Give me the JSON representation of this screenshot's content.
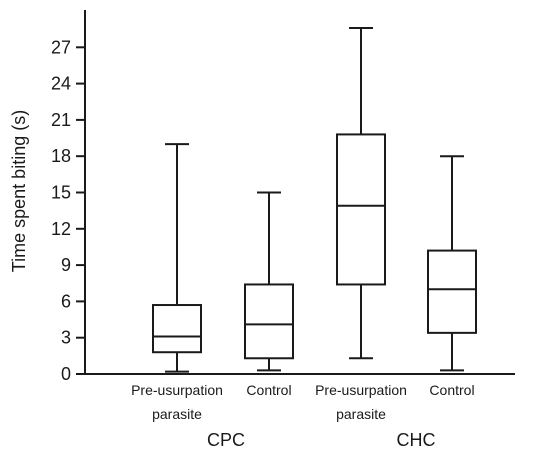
{
  "chart_data": {
    "type": "box",
    "ylabel": "Time spent biting (s)",
    "ylim": [
      0,
      30
    ],
    "yticks": [
      0,
      3,
      6,
      9,
      12,
      15,
      18,
      21,
      24,
      27
    ],
    "grid": false,
    "groups": [
      {
        "name": "CPC",
        "boxes": [
          {
            "label_lines": [
              "Pre-usurpation",
              "parasite"
            ],
            "min": 0.2,
            "q1": 1.8,
            "median": 3.1,
            "q3": 5.7,
            "max": 19.0
          },
          {
            "label_lines": [
              "Control"
            ],
            "min": 0.3,
            "q1": 1.3,
            "median": 4.1,
            "q3": 7.4,
            "max": 15.0
          }
        ]
      },
      {
        "name": "CHC",
        "boxes": [
          {
            "label_lines": [
              "Pre-usurpation",
              "parasite"
            ],
            "min": 1.3,
            "q1": 7.4,
            "median": 13.9,
            "q3": 19.8,
            "max": 28.6
          },
          {
            "label_lines": [
              "Control"
            ],
            "min": 0.3,
            "q1": 3.4,
            "median": 7.0,
            "q3": 10.2,
            "max": 18.0
          }
        ]
      }
    ]
  }
}
